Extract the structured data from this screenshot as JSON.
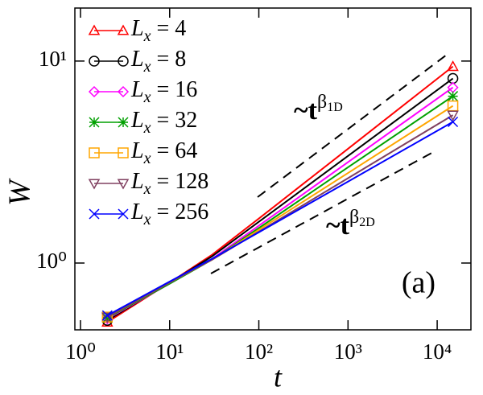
{
  "chart_data": {
    "type": "line",
    "xlabel": "t",
    "ylabel": "W",
    "log_x": true,
    "log_y": true,
    "xlim": [
      0.865,
      23900
    ],
    "ylim": [
      0.467,
      18.3
    ],
    "xticks": [
      {
        "value": 1,
        "label": "10⁰"
      },
      {
        "value": 10,
        "label": "10¹"
      },
      {
        "value": 100,
        "label": "10²"
      },
      {
        "value": 1000,
        "label": "10³"
      },
      {
        "value": 10000,
        "label": "10⁴"
      }
    ],
    "yticks": [
      {
        "value": 1,
        "label": "10⁰"
      },
      {
        "value": 10,
        "label": "10¹"
      }
    ],
    "legend": "upper left",
    "x": [
      2,
      10,
      30,
      100,
      1000,
      15000
    ],
    "series": [
      {
        "name": "Lx = 4",
        "color": "#ff0000",
        "marker": "triangle-up",
        "values": [
          0.51,
          0.8,
          1.1,
          1.66,
          3.68,
          9.4
        ]
      },
      {
        "name": "Lx = 8",
        "color": "#000000",
        "marker": "circle",
        "values": [
          0.52,
          0.8,
          1.08,
          1.6,
          3.39,
          8.2
        ]
      },
      {
        "name": "Lx = 16",
        "color": "#ff00ff",
        "marker": "diamond",
        "values": [
          0.53,
          0.79,
          1.05,
          1.53,
          3.16,
          7.4
        ]
      },
      {
        "name": "Lx = 32",
        "color": "#00a000",
        "marker": "star",
        "values": [
          0.535,
          0.79,
          1.04,
          1.49,
          2.98,
          6.7
        ]
      },
      {
        "name": "Lx = 64",
        "color": "#ffa500",
        "marker": "square",
        "values": [
          0.54,
          0.8,
          1.04,
          1.46,
          2.79,
          6.0
        ]
      },
      {
        "name": "Lx = 128",
        "color": "#804060",
        "marker": "triangle-down",
        "values": [
          0.54,
          0.8,
          1.04,
          1.43,
          2.63,
          5.4
        ]
      },
      {
        "name": "Lx = 256",
        "color": "#0000ff",
        "marker": "x",
        "values": [
          0.55,
          0.81,
          1.05,
          1.42,
          2.53,
          5.0
        ]
      }
    ],
    "annotations": [
      {
        "prefix": "~t",
        "exponent": "β",
        "subscript": "1D"
      },
      {
        "prefix": "~t",
        "exponent": "β",
        "subscript": "2D"
      }
    ],
    "panel_label": "(a)"
  }
}
